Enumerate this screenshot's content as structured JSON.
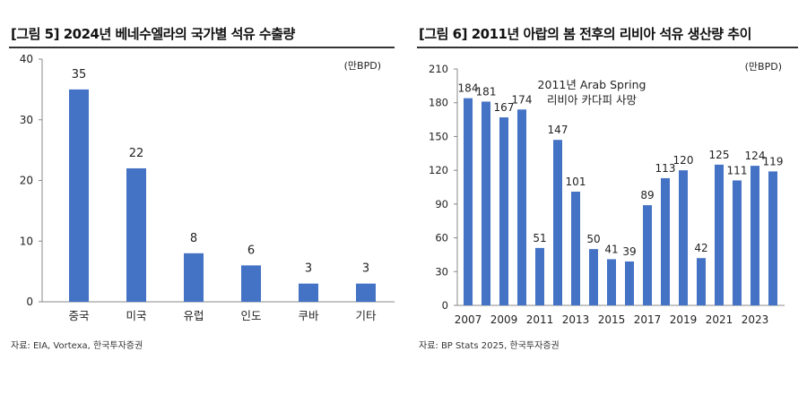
{
  "chart_data": [
    {
      "type": "bar",
      "title": "[그림 5] 2024년 베네수엘라의 국가별 석유 수출량",
      "unit": "(만BPD)",
      "categories": [
        "중국",
        "미국",
        "유럽",
        "인도",
        "쿠바",
        "기타"
      ],
      "values": [
        35,
        22,
        8,
        6,
        3,
        3
      ],
      "ylim": [
        0,
        40
      ],
      "yticks": [
        0,
        10,
        20,
        30,
        40
      ],
      "color": "#4472C4",
      "source": "자료: EIA, Vortexa, 한국투자증권"
    },
    {
      "type": "bar",
      "title": "[그림 6] 2011년 아랍의 봄 전후의 리비아 석유 생산량 추이",
      "unit": "(만BPD)",
      "categories": [
        "2007",
        "2008",
        "2009",
        "2010",
        "2011",
        "2012",
        "2013",
        "2014",
        "2015",
        "2016",
        "2017",
        "2018",
        "2019",
        "2020",
        "2021",
        "2022",
        "2023",
        "2024"
      ],
      "xtick_labels": [
        "2007",
        "2009",
        "2011",
        "2013",
        "2015",
        "2017",
        "2019",
        "2021",
        "2023"
      ],
      "values": [
        184,
        181,
        167,
        174,
        51,
        147,
        101,
        50,
        41,
        39,
        89,
        113,
        120,
        42,
        125,
        111,
        124,
        119
      ],
      "ylim": [
        0,
        210
      ],
      "yticks": [
        0,
        30,
        60,
        90,
        120,
        150,
        180,
        210
      ],
      "annotation": [
        "2011년 Arab Spring",
        "리비아 카다피 사망"
      ],
      "color": "#4472C4",
      "source": "자료: BP Stats 2025, 한국투자증권"
    }
  ]
}
